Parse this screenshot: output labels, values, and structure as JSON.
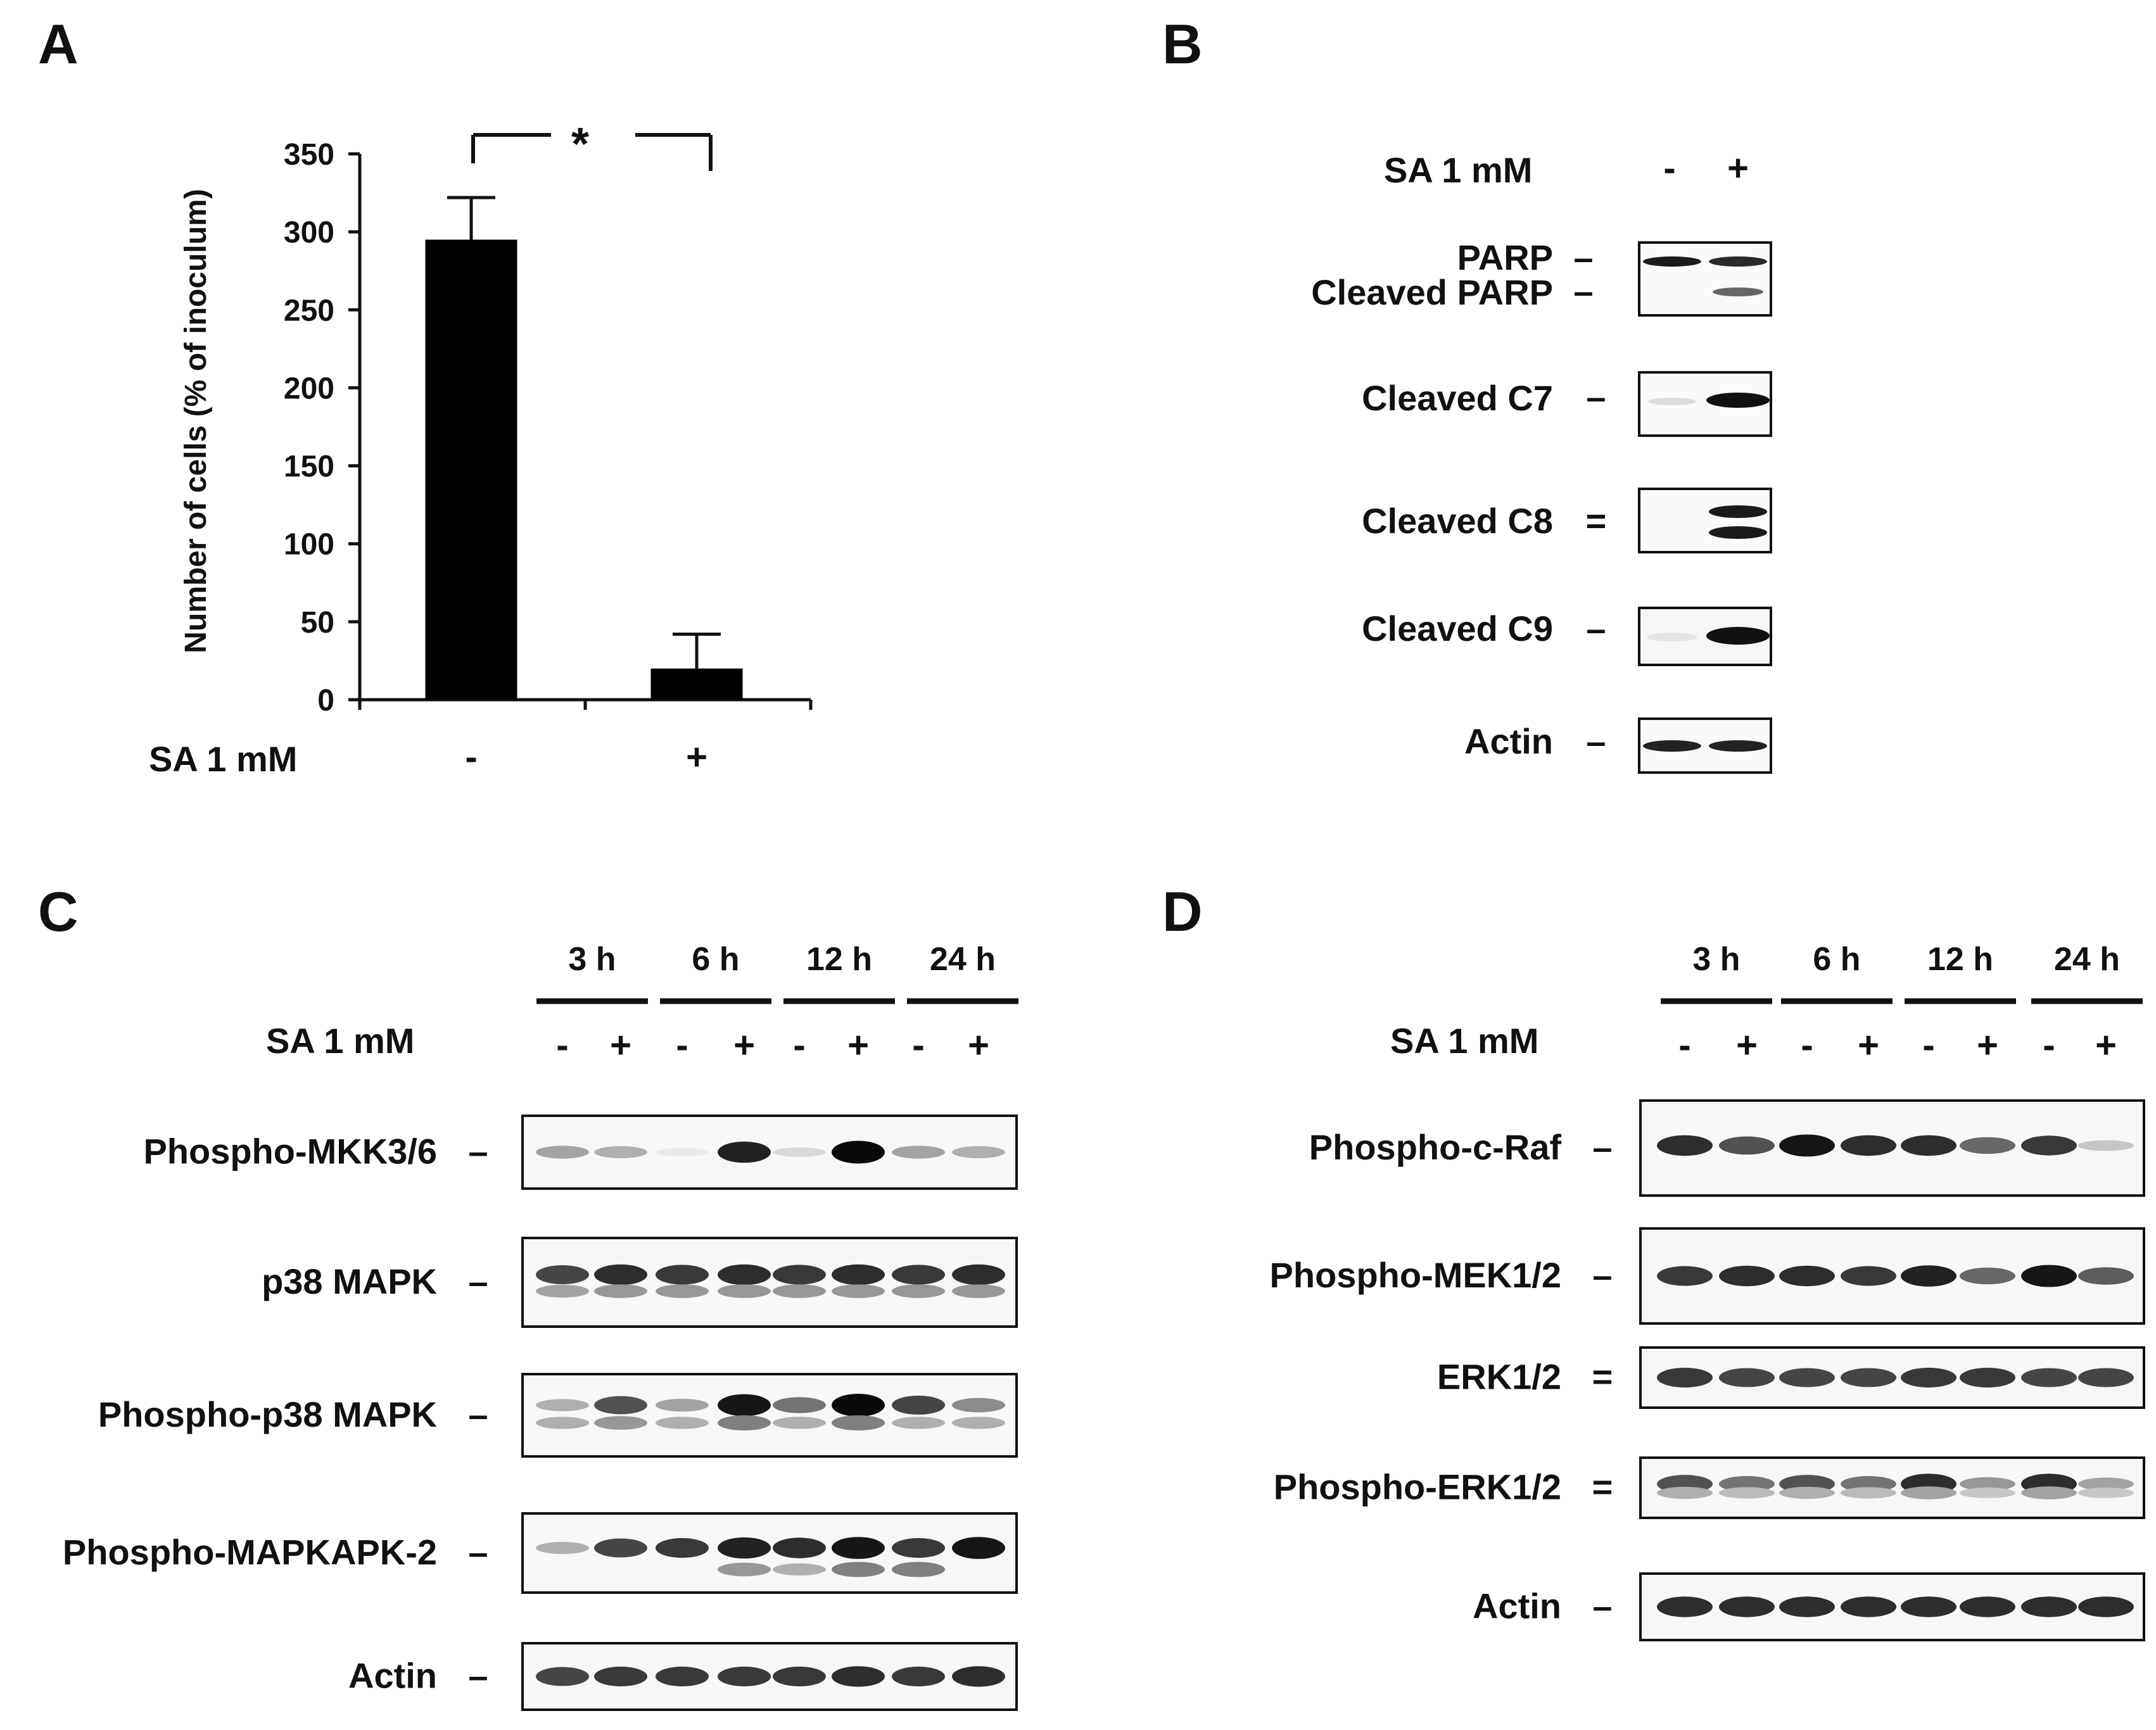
{
  "panels": {
    "a": {
      "label": "A",
      "treatment_label": "SA 1 mM",
      "significance": "*",
      "chart_data": {
        "type": "bar",
        "categories": [
          "-",
          "+"
        ],
        "values": [
          295,
          20
        ],
        "error": [
          27,
          22
        ],
        "title": "",
        "xlabel": "SA 1 mM",
        "ylabel": "Number of cells (% of inoculum)",
        "ylim": [
          0,
          350
        ],
        "yticks": [
          "0",
          "50",
          "100",
          "150",
          "200",
          "250",
          "300",
          "350"
        ],
        "bar_color": "#000000",
        "grid": false
      }
    },
    "b": {
      "label": "B",
      "treatment_label": "SA 1 mM",
      "lanes": [
        "-",
        "+"
      ],
      "blots": [
        {
          "labels": [
            "PARP",
            "Cleaved PARP"
          ],
          "marks": [
            "–",
            "–"
          ]
        },
        {
          "labels": [
            "Cleaved C7"
          ],
          "marks": [
            "–"
          ]
        },
        {
          "labels": [
            "Cleaved C8"
          ],
          "marks": [
            "="
          ]
        },
        {
          "labels": [
            "Cleaved C9"
          ],
          "marks": [
            "–"
          ]
        },
        {
          "labels": [
            "Actin"
          ],
          "marks": [
            "–"
          ]
        }
      ]
    },
    "c": {
      "label": "C",
      "treatment_label": "SA 1 mM",
      "times": [
        "3 h",
        "6 h",
        "12 h",
        "24 h"
      ],
      "lanes": [
        "-",
        "+",
        "-",
        "+",
        "-",
        "+",
        "-",
        "+"
      ],
      "blots": [
        {
          "label": "Phospho-MKK3/6",
          "mark": "–"
        },
        {
          "label": "p38 MAPK",
          "mark": "–"
        },
        {
          "label": "Phospho-p38 MAPK",
          "mark": "–"
        },
        {
          "label": "Phospho-MAPKAPK-2",
          "mark": "–"
        },
        {
          "label": "Actin",
          "mark": "–"
        }
      ]
    },
    "d": {
      "label": "D",
      "treatment_label": "SA 1 mM",
      "times": [
        "3 h",
        "6 h",
        "12 h",
        "24 h"
      ],
      "lanes": [
        "-",
        "+",
        "-",
        "+",
        "-",
        "+",
        "-",
        "+"
      ],
      "blots": [
        {
          "label": "Phospho-c-Raf",
          "mark": "–"
        },
        {
          "label": "Phospho-MEK1/2",
          "mark": "–"
        },
        {
          "label": "ERK1/2",
          "mark": "="
        },
        {
          "label": "Phospho-ERK1/2",
          "mark": "="
        },
        {
          "label": "Actin",
          "mark": "–"
        }
      ]
    }
  }
}
